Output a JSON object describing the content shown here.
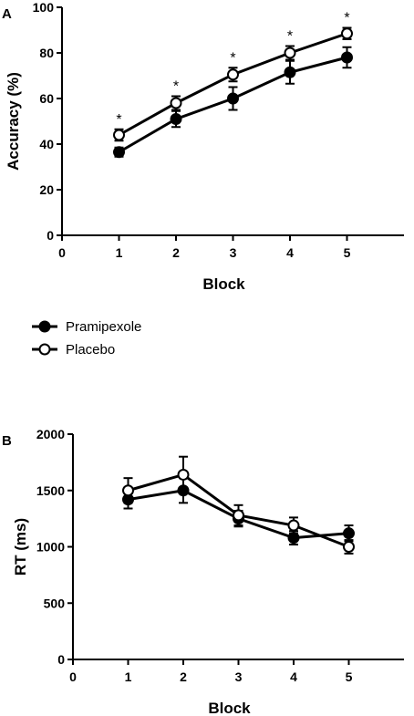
{
  "legend": [
    {
      "name": "Pramipexole",
      "marker": "filled"
    },
    {
      "name": "Placebo",
      "marker": "open"
    }
  ],
  "chart_data": [
    {
      "type": "line",
      "panel_label": "A",
      "xlabel": "Block",
      "ylabel": "Accuracy (%)",
      "xlim": [
        0,
        6
      ],
      "ylim": [
        0,
        100
      ],
      "xticks": [
        0,
        1,
        2,
        3,
        4,
        5
      ],
      "yticks": [
        0,
        20,
        40,
        60,
        80,
        100
      ],
      "x": [
        1,
        2,
        3,
        4,
        5
      ],
      "series": [
        {
          "name": "Pramipexole",
          "marker": "filled",
          "values": [
            36.5,
            51,
            60,
            71.5,
            78
          ],
          "error": [
            2,
            3.5,
            5,
            5,
            4.5
          ]
        },
        {
          "name": "Placebo",
          "marker": "open",
          "values": [
            44,
            58,
            70.5,
            80,
            88.5
          ],
          "error": [
            2.5,
            3,
            3,
            3,
            2.5
          ]
        }
      ],
      "annotations": [
        {
          "x": 1,
          "text": "*"
        },
        {
          "x": 2,
          "text": "*"
        },
        {
          "x": 3,
          "text": "*"
        },
        {
          "x": 4,
          "text": "*"
        },
        {
          "x": 5,
          "text": "*"
        }
      ]
    },
    {
      "type": "line",
      "panel_label": "B",
      "xlabel": "Block",
      "ylabel": "RT (ms)",
      "xlim": [
        0,
        6
      ],
      "ylim": [
        0,
        2000
      ],
      "xticks": [
        0,
        1,
        2,
        3,
        4,
        5
      ],
      "yticks": [
        0,
        500,
        1000,
        1500,
        2000
      ],
      "x": [
        1,
        2,
        3,
        4,
        5
      ],
      "series": [
        {
          "name": "Pramipexole",
          "marker": "filled",
          "values": [
            1420,
            1500,
            1250,
            1080,
            1120
          ],
          "error": [
            80,
            110,
            70,
            60,
            70
          ]
        },
        {
          "name": "Placebo",
          "marker": "open",
          "values": [
            1500,
            1640,
            1280,
            1190,
            1000
          ],
          "error": [
            110,
            160,
            90,
            70,
            60
          ]
        }
      ],
      "annotations": []
    }
  ]
}
